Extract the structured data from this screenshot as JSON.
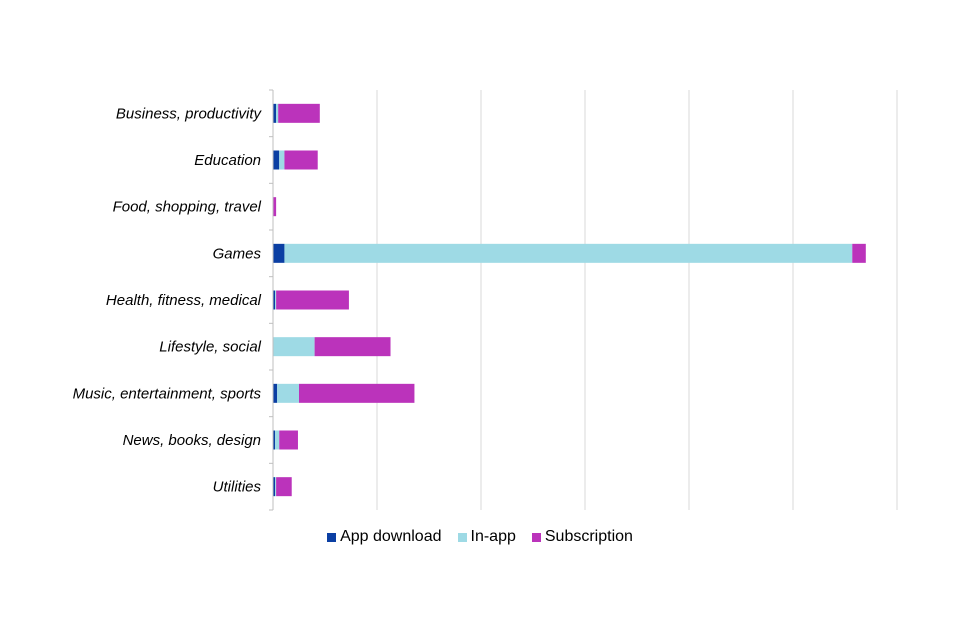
{
  "chart_data": {
    "type": "bar",
    "orientation": "horizontal",
    "stacked": true,
    "title": "",
    "xlabel": "",
    "ylabel": "",
    "categories": [
      "Business, productivity",
      "Education",
      "Food, shopping, travel",
      "Games",
      "Health, fitness, medical",
      "Lifestyle, social",
      "Music, entertainment, sports",
      "News, books, design",
      "Utilities"
    ],
    "series": [
      {
        "name": "App download",
        "color": "#0B3FA3",
        "values": [
          0.3,
          0.6,
          0.0,
          1.1,
          0.2,
          0.0,
          0.4,
          0.2,
          0.2
        ]
      },
      {
        "name": "In-app",
        "color": "#9EDAE5",
        "values": [
          0.2,
          0.5,
          0.0,
          54.6,
          0.1,
          4.0,
          2.1,
          0.4,
          0.1
        ]
      },
      {
        "name": "Subscription",
        "color": "#BB33BB",
        "values": [
          4.0,
          3.2,
          0.3,
          1.3,
          7.0,
          7.3,
          11.1,
          1.8,
          1.5
        ]
      }
    ],
    "xlim": [
      0,
      60
    ],
    "xtick_step": 10,
    "xtick_labels_visible": false,
    "grid": true,
    "legend_position": "bottom"
  }
}
